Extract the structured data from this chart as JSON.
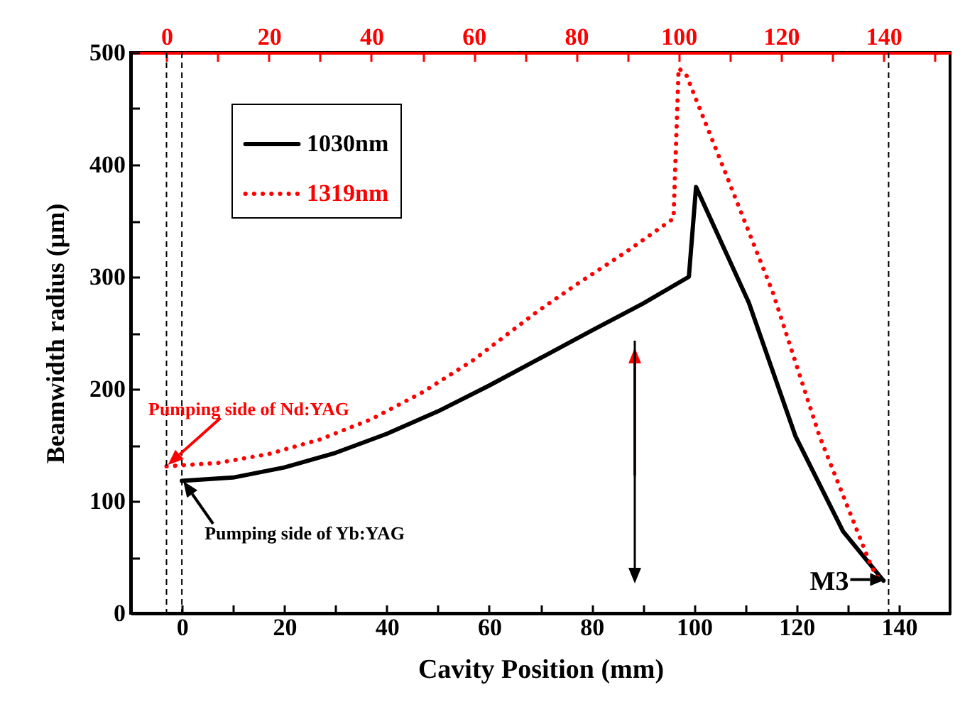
{
  "chart_data": {
    "type": "line",
    "xlabel": "Cavity Position (mm)",
    "ylabel": "Beamwidth radius (μm)",
    "xlim": [
      -10,
      150
    ],
    "xticks": [
      0,
      {
        "value": 10,
        "label": null
      },
      20,
      {
        "value": 30,
        "label": null
      },
      40,
      {
        "value": 50,
        "label": null
      },
      60,
      {
        "value": 70,
        "label": null
      },
      80,
      {
        "value": 90,
        "label": null
      },
      100,
      {
        "value": 110,
        "label": null
      },
      120,
      {
        "value": 130,
        "label": null
      },
      140
    ],
    "x2lim": [
      -7,
      153
    ],
    "x2ticks": [
      0,
      {
        "value": 10,
        "label": null
      },
      20,
      {
        "value": 30,
        "label": null
      },
      40,
      {
        "value": 50,
        "label": null
      },
      60,
      {
        "value": 70,
        "label": null
      },
      80,
      {
        "value": 90,
        "label": null
      },
      100,
      {
        "value": 110,
        "label": null
      },
      120,
      {
        "value": 130,
        "label": null
      },
      140,
      {
        "value": 150,
        "label": null
      }
    ],
    "ylim": [
      0,
      500
    ],
    "yticks": [
      0,
      {
        "value": 50,
        "label": null
      },
      100,
      {
        "value": 150,
        "label": null
      },
      200,
      {
        "value": 250,
        "label": null
      },
      300,
      {
        "value": 350,
        "label": null
      },
      400,
      {
        "value": 450,
        "label": null
      },
      500
    ],
    "grid": false,
    "legend": "top left",
    "series": [
      {
        "name": "1030nm",
        "color": "#000000",
        "line_style": "solid",
        "x": [
          0,
          10,
          20,
          30,
          40,
          50,
          60,
          69.4,
          80,
          90,
          99,
          100.4,
          110.7,
          119.8,
          129.1,
          137
        ],
        "values": [
          118,
          121,
          130,
          143,
          160,
          180,
          203,
          226,
          252,
          276,
          300,
          380,
          277,
          158,
          73,
          29
        ]
      },
      {
        "name": "1319nm",
        "color": "#ff0000",
        "line_style": "dotted",
        "axis": "x2",
        "x": [
          0,
          10,
          20,
          30,
          40,
          50,
          60,
          72.4,
          80,
          90,
          99,
          100,
          101.5,
          109.2,
          118.4,
          127.5,
          137.6,
          139.7
        ],
        "values": [
          131,
          134,
          142,
          155,
          173,
          197,
          226,
          269,
          293,
          323,
          352,
          486,
          480,
          392,
          286,
          158,
          42,
          26
        ]
      }
    ],
    "ref_lines": [
      {
        "axis": "x",
        "value": 0,
        "color": "#000000",
        "line_style": "dashed"
      },
      {
        "axis": "x2",
        "value": 0,
        "color": "#000000",
        "line_style": "dashed"
      },
      {
        "axis": "x",
        "value": 138,
        "color": "#000000",
        "line_style": "dashed"
      }
    ],
    "annotations": [
      {
        "text": "Pumping side of Nd:YAG",
        "x": -3,
        "y": 131
      },
      {
        "text": "Pumping side of Yb:YAG",
        "x": 0,
        "y": 119
      },
      {
        "text": "M3",
        "x": 138,
        "y": 30
      }
    ]
  }
}
